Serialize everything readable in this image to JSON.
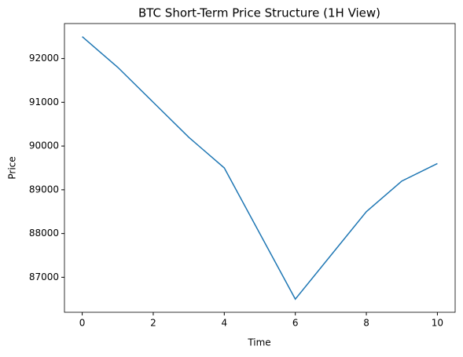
{
  "chart_data": {
    "type": "line",
    "title": "BTC Short-Term Price Structure (1H View)",
    "x_label": "Time",
    "y_label": "Price",
    "x": [
      0,
      1,
      2,
      3,
      4,
      5,
      6,
      7,
      8,
      9,
      10
    ],
    "series": [
      {
        "name": "BTC",
        "color": "#1f77b4",
        "values": [
          92500,
          91800,
          91000,
          90200,
          89500,
          88000,
          86500,
          87500,
          88500,
          89200,
          89600
        ]
      }
    ],
    "xlim": [
      -0.5,
      10.5
    ],
    "xticks": [
      0,
      2,
      4,
      6,
      8,
      10
    ],
    "ylim": [
      86200,
      92800
    ],
    "yticks": [
      87000,
      88000,
      89000,
      90000,
      91000,
      92000
    ],
    "grid": false,
    "legend": false
  }
}
